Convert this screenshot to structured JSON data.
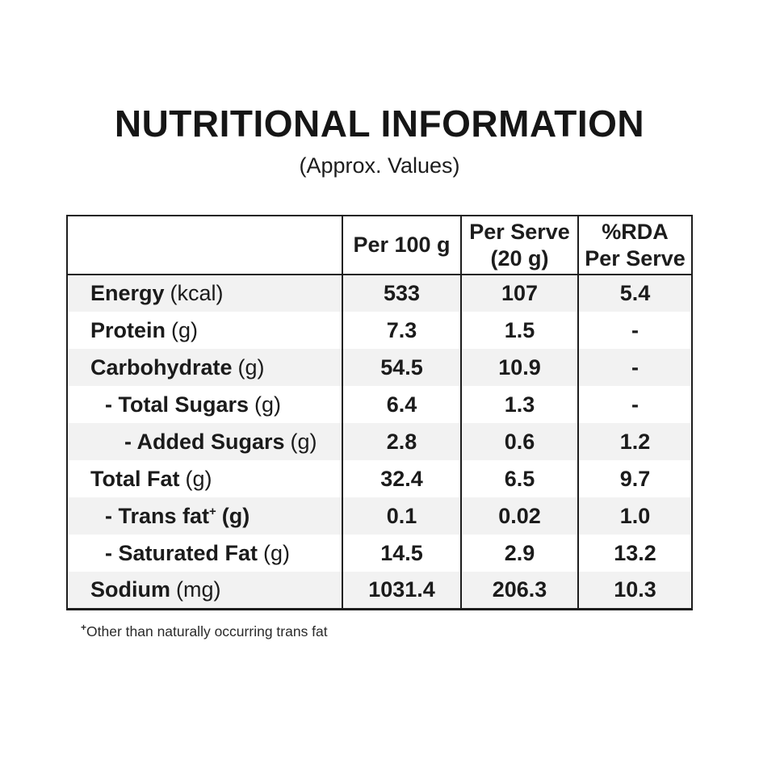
{
  "title": "NUTRITIONAL INFORMATION",
  "subtitle": "(Approx. Values)",
  "table": {
    "headers": {
      "col1": "",
      "col2": "Per 100 g",
      "col3_line1": "Per Serve",
      "col3_line2": "(20 g)",
      "col4_line1": "%RDA",
      "col4_line2": "Per Serve"
    },
    "rows": [
      {
        "name": "Energy",
        "unit": "(kcal)",
        "per100": "533",
        "perServe": "107",
        "rda": "5.4"
      },
      {
        "name": "Protein",
        "unit": "(g)",
        "per100": "7.3",
        "perServe": "1.5",
        "rda": "-"
      },
      {
        "name": "Carbohydrate",
        "unit": "(g)",
        "per100": "54.5",
        "perServe": "10.9",
        "rda": "-"
      },
      {
        "name": "- Total Sugars",
        "unit": "(g)",
        "per100": "6.4",
        "perServe": "1.3",
        "rda": "-"
      },
      {
        "name": "- Added Sugars",
        "unit": "(g)",
        "per100": "2.8",
        "perServe": "0.6",
        "rda": "1.2"
      },
      {
        "name": "Total Fat",
        "unit": "(g)",
        "per100": "32.4",
        "perServe": "6.5",
        "rda": "9.7"
      },
      {
        "name": "- Trans fat",
        "sup": "+",
        "unit": "(g)",
        "per100": "0.1",
        "perServe": "0.02",
        "rda": "1.0"
      },
      {
        "name": "- Saturated Fat",
        "unit": "(g)",
        "per100": "14.5",
        "perServe": "2.9",
        "rda": "13.2"
      },
      {
        "name": "Sodium",
        "unit": "(mg)",
        "per100": "1031.4",
        "perServe": "206.3",
        "rda": "10.3"
      }
    ]
  },
  "footnote": {
    "sup": "+",
    "text": "Other than naturally occurring trans fat"
  },
  "colors": {
    "text": "#1c1c1c",
    "border": "#1d1d1d",
    "shaded_row": "#f2f2f2",
    "background": "#ffffff"
  }
}
